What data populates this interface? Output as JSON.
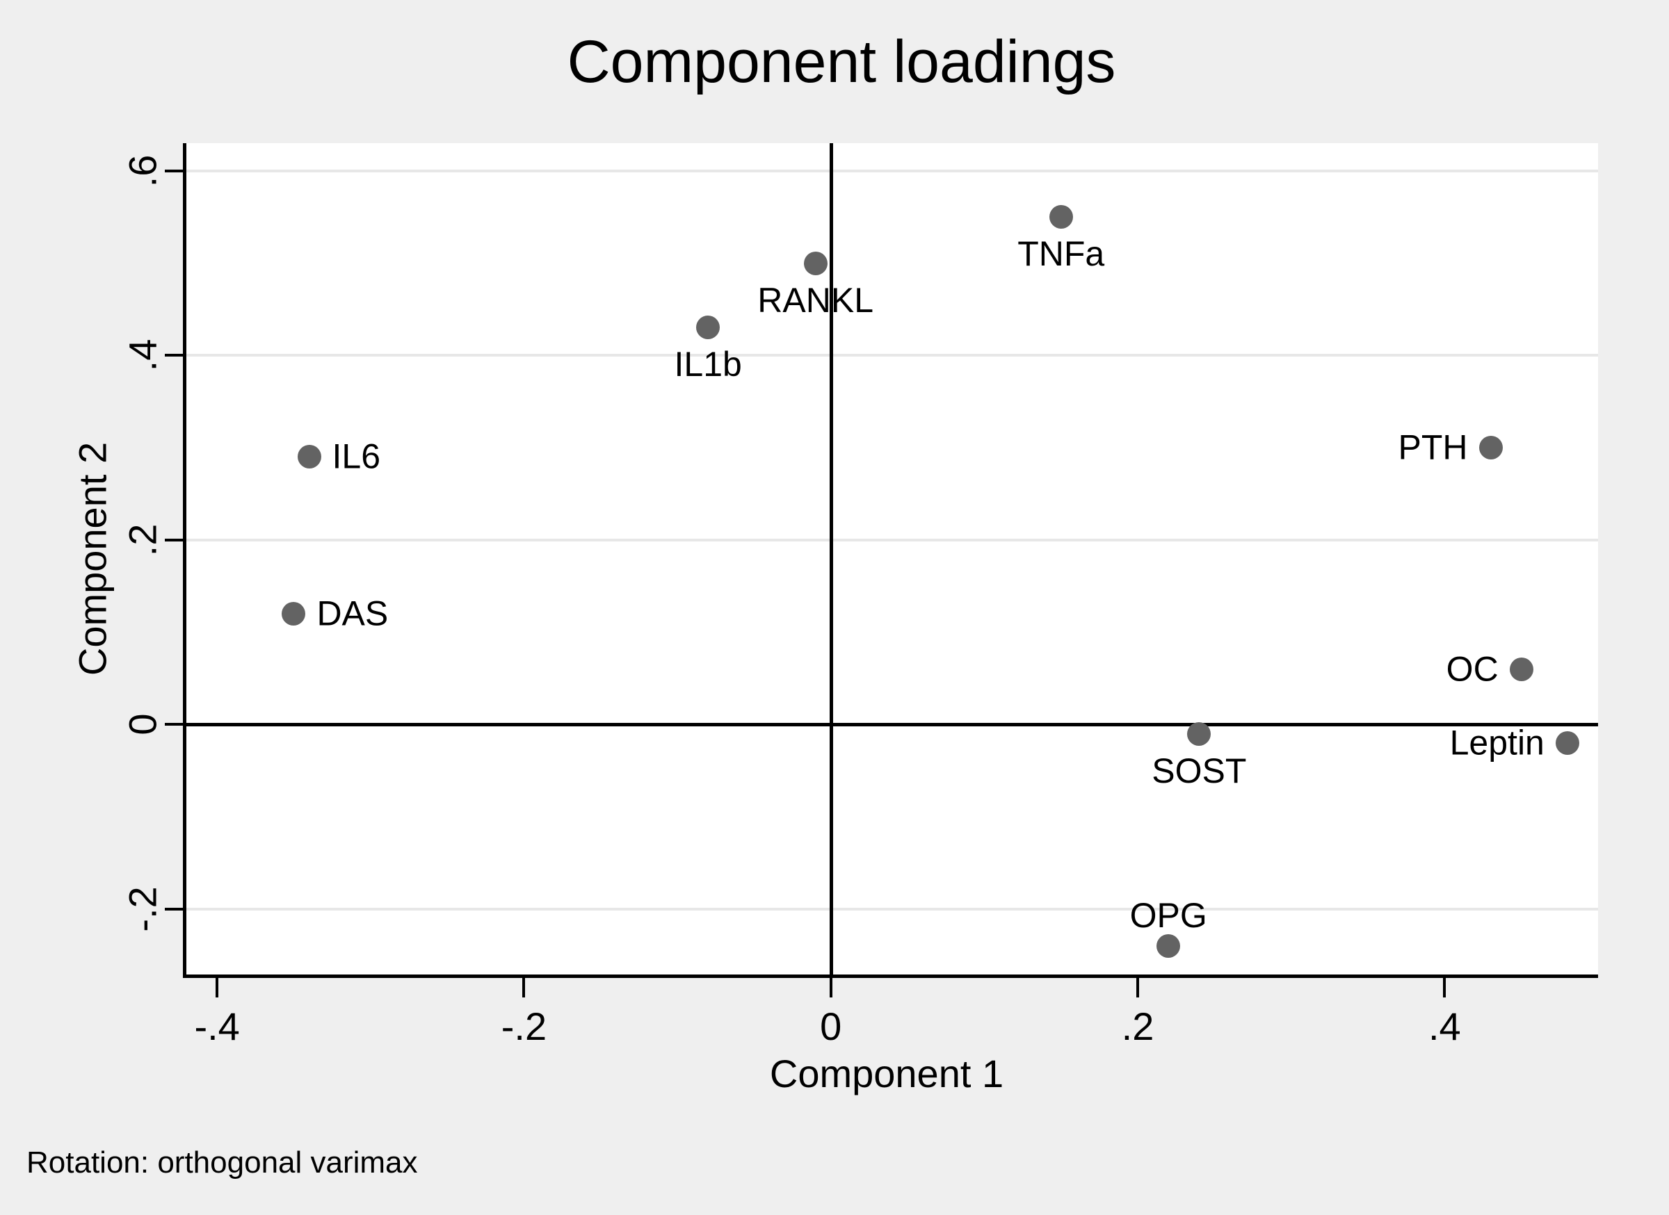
{
  "title": "Component loadings",
  "footer_note": "Rotation: orthogonal varimax",
  "colors": {
    "background": "#efefef",
    "plot_background": "#ffffff",
    "gridline": "#e7e7e7",
    "axis": "#000000",
    "marker": "#636363",
    "text": "#000000"
  },
  "chart_data": {
    "type": "scatter",
    "title": "Component loadings",
    "xlabel": "Component 1",
    "ylabel": "Component 2",
    "note": "Rotation: orthogonal varimax",
    "xlim": [
      -0.42,
      0.5
    ],
    "ylim": [
      -0.271,
      0.63
    ],
    "x_ticks": [
      -0.4,
      -0.2,
      0,
      0.2,
      0.4
    ],
    "x_tick_labels": [
      "-.4",
      "-.2",
      "0",
      ".2",
      ".4"
    ],
    "y_ticks": [
      0.6,
      0.4,
      0.2,
      0,
      -0.2
    ],
    "y_tick_labels": [
      ".6",
      ".4",
      ".2",
      "0",
      "-.2"
    ],
    "grid": "horizontal-only",
    "zero_lines": true,
    "legend": "none",
    "points": [
      {
        "label": "TNFa",
        "x": 0.15,
        "y": 0.55,
        "label_position": "below"
      },
      {
        "label": "RANKL",
        "x": -0.01,
        "y": 0.5,
        "label_position": "below"
      },
      {
        "label": "IL1b",
        "x": -0.08,
        "y": 0.43,
        "label_position": "below"
      },
      {
        "label": "IL6",
        "x": -0.34,
        "y": 0.29,
        "label_position": "right"
      },
      {
        "label": "DAS",
        "x": -0.35,
        "y": 0.12,
        "label_position": "right"
      },
      {
        "label": "PTH",
        "x": 0.43,
        "y": 0.3,
        "label_position": "left"
      },
      {
        "label": "OC",
        "x": 0.45,
        "y": 0.06,
        "label_position": "left"
      },
      {
        "label": "Leptin",
        "x": 0.48,
        "y": -0.02,
        "label_position": "left"
      },
      {
        "label": "SOST",
        "x": 0.24,
        "y": -0.01,
        "label_position": "below"
      },
      {
        "label": "OPG",
        "x": 0.22,
        "y": -0.24,
        "label_position": "above"
      }
    ]
  }
}
